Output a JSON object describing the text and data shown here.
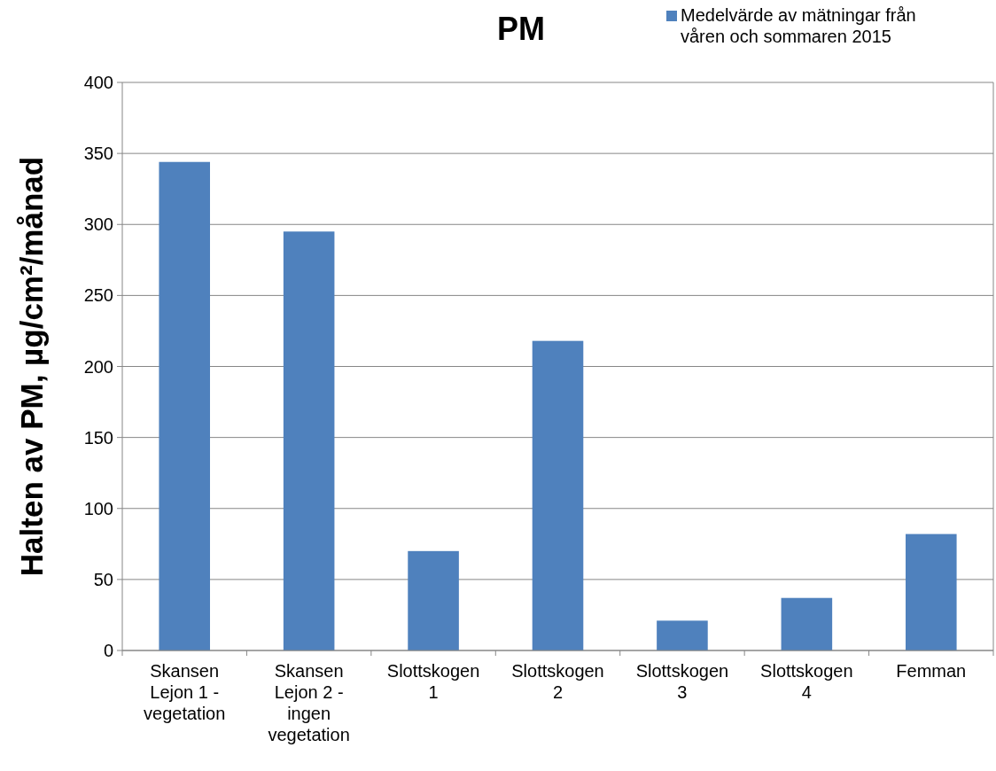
{
  "chart_data": {
    "type": "bar",
    "title": "PM",
    "ylabel": "Halten av PM, µg/cm²/månad",
    "categories": [
      "Skansen Lejon 1 - vegetation",
      "Skansen Lejon 2 - ingen vegetation",
      "Slottskogen 1",
      "Slottskogen 2",
      "Slottskogen 3",
      "Slottskogen 4",
      "Femman"
    ],
    "series": [
      {
        "name": "Medelvärde av mätningar från våren och sommaren 2015",
        "color": "#4f81bd",
        "values": [
          344,
          295,
          70,
          218,
          21,
          37,
          82
        ]
      }
    ],
    "ylim": [
      0,
      400
    ],
    "yticks": [
      0,
      50,
      100,
      150,
      200,
      250,
      300,
      350,
      400
    ],
    "grid": "y",
    "legend": "top right"
  }
}
